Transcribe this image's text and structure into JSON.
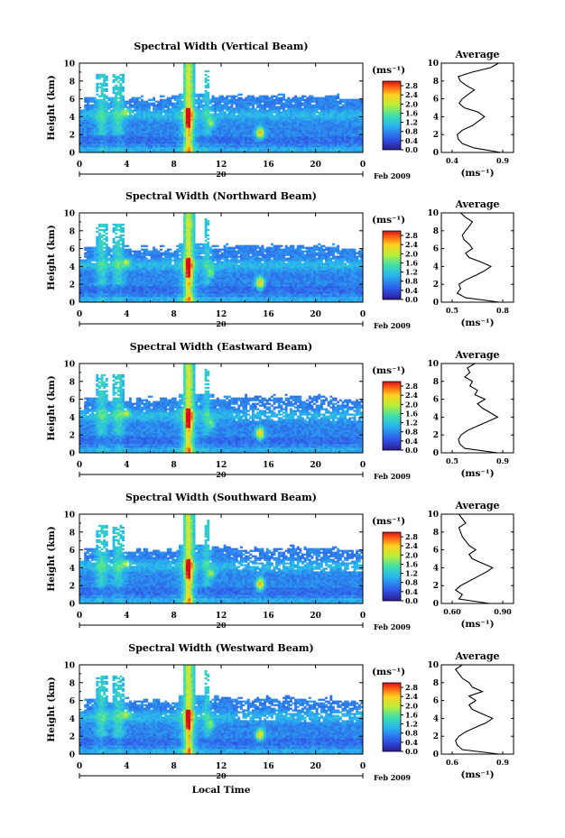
{
  "figure": {
    "x_axis_label": "Local Time",
    "day_label": "20",
    "month_label": "Feb 2009"
  },
  "chart_data": [
    {
      "type": "heatmap",
      "title": "Spectral Width (Vertical Beam)",
      "ylabel": "Height (km)",
      "xlabel": "Local Time",
      "x_ticks": [
        "0",
        "4",
        "8",
        "12",
        "16",
        "20",
        "0"
      ],
      "y_ticks": [
        "0",
        "2",
        "4",
        "6",
        "8",
        "10"
      ],
      "xlim": [
        0,
        24
      ],
      "ylim": [
        0,
        10
      ],
      "colorbar": {
        "unit": "(ms⁻¹)",
        "ticks": [
          "0.0",
          "0.4",
          "0.8",
          "1.2",
          "1.6",
          "2.0",
          "2.4",
          "2.8"
        ],
        "range": [
          0,
          3.0
        ]
      },
      "average_profile": {
        "title": "Average",
        "xlabel": "(ms⁻¹)",
        "x_ticks": [
          "0.4",
          "0.9"
        ],
        "xlim": [
          0.4,
          0.9
        ],
        "y_ticks": [
          "0",
          "2",
          "4",
          "6",
          "8",
          "10"
        ],
        "heights": [
          0,
          0.5,
          1,
          1.5,
          2,
          2.5,
          3,
          3.5,
          4,
          4.5,
          5,
          5.5,
          6,
          6.5,
          7,
          7.5,
          8,
          8.5,
          9,
          9.5,
          10
        ],
        "values": [
          0.88,
          0.62,
          0.5,
          0.46,
          0.45,
          0.5,
          0.6,
          0.66,
          0.72,
          0.66,
          0.52,
          0.47,
          0.5,
          0.56,
          0.62,
          0.54,
          0.48,
          0.46,
          0.6,
          0.78,
          0.86
        ]
      }
    },
    {
      "type": "heatmap",
      "title": "Spectral Width (Northward Beam)",
      "ylabel": "Height (km)",
      "xlabel": "Local Time",
      "x_ticks": [
        "0",
        "4",
        "8",
        "12",
        "16",
        "20",
        "0"
      ],
      "y_ticks": [
        "0",
        "2",
        "4",
        "6",
        "8",
        "10"
      ],
      "xlim": [
        0,
        24
      ],
      "ylim": [
        0,
        10
      ],
      "colorbar": {
        "unit": "(ms⁻¹)",
        "ticks": [
          "0.0",
          "0.4",
          "0.8",
          "1.2",
          "1.6",
          "2.0",
          "2.4",
          "2.8"
        ],
        "range": [
          0,
          3.0
        ]
      },
      "average_profile": {
        "title": "Average",
        "xlabel": "(ms⁻¹)",
        "x_ticks": [
          "0.5",
          "0.8"
        ],
        "xlim": [
          0.5,
          0.8
        ],
        "y_ticks": [
          "0",
          "2",
          "4",
          "6",
          "8",
          "10"
        ],
        "heights": [
          0,
          0.5,
          1,
          1.5,
          2,
          2.5,
          3,
          3.5,
          4,
          4.5,
          5,
          5.5,
          6,
          6.5,
          7,
          7.5,
          8,
          8.5,
          9,
          9.5,
          10
        ],
        "values": [
          0.78,
          0.58,
          0.53,
          0.55,
          0.54,
          0.58,
          0.64,
          0.69,
          0.73,
          0.67,
          0.6,
          0.58,
          0.62,
          0.6,
          0.57,
          0.56,
          0.58,
          0.6,
          0.62,
          0.58,
          0.55
        ]
      }
    },
    {
      "type": "heatmap",
      "title": "Spectral Width (Eastward Beam)",
      "ylabel": "Height (km)",
      "xlabel": "Local Time",
      "x_ticks": [
        "0",
        "4",
        "8",
        "12",
        "16",
        "20",
        "0"
      ],
      "y_ticks": [
        "0",
        "2",
        "4",
        "6",
        "8",
        "10"
      ],
      "xlim": [
        0,
        24
      ],
      "ylim": [
        0,
        10
      ],
      "colorbar": {
        "unit": "(ms⁻¹)",
        "ticks": [
          "0.0",
          "0.4",
          "0.8",
          "1.2",
          "1.6",
          "2.0",
          "2.4",
          "2.8"
        ],
        "range": [
          0,
          3.0
        ]
      },
      "average_profile": {
        "title": "Average",
        "xlabel": "(ms⁻¹)",
        "x_ticks": [
          "0.5",
          "0.9"
        ],
        "xlim": [
          0.5,
          0.9
        ],
        "y_ticks": [
          "0",
          "2",
          "4",
          "6",
          "8",
          "10"
        ],
        "heights": [
          0,
          0.5,
          1,
          1.5,
          2,
          2.5,
          3,
          3.5,
          4,
          4.5,
          5,
          5.5,
          6,
          6.5,
          7,
          7.5,
          8,
          8.5,
          9,
          9.5,
          10
        ],
        "values": [
          0.86,
          0.6,
          0.56,
          0.55,
          0.57,
          0.62,
          0.7,
          0.78,
          0.86,
          0.8,
          0.74,
          0.7,
          0.76,
          0.68,
          0.7,
          0.64,
          0.66,
          0.6,
          0.64,
          0.62,
          0.68
        ]
      }
    },
    {
      "type": "heatmap",
      "title": "Spectral Width (Southward Beam)",
      "ylabel": "Height (km)",
      "xlabel": "Local Time",
      "x_ticks": [
        "0",
        "4",
        "8",
        "12",
        "16",
        "20",
        "0"
      ],
      "y_ticks": [
        "0",
        "2",
        "4",
        "6",
        "8",
        "10"
      ],
      "xlim": [
        0,
        24
      ],
      "ylim": [
        0,
        10
      ],
      "colorbar": {
        "unit": "(ms⁻¹)",
        "ticks": [
          "0.0",
          "0.4",
          "0.8",
          "1.2",
          "1.6",
          "2.0",
          "2.4",
          "2.8"
        ],
        "range": [
          0,
          3.0
        ]
      },
      "average_profile": {
        "title": "Average",
        "xlabel": "(ms⁻¹)",
        "x_ticks": [
          "0.60",
          "0.90"
        ],
        "xlim": [
          0.6,
          0.9
        ],
        "y_ticks": [
          "0",
          "2",
          "4",
          "6",
          "8",
          "10"
        ],
        "heights": [
          0,
          0.5,
          1,
          1.5,
          2,
          2.5,
          3,
          3.5,
          4,
          4.5,
          5,
          5.5,
          6,
          6.5,
          7,
          7.5,
          8,
          8.5,
          9,
          9.5,
          10
        ],
        "values": [
          0.82,
          0.64,
          0.66,
          0.62,
          0.65,
          0.7,
          0.75,
          0.8,
          0.84,
          0.78,
          0.72,
          0.7,
          0.74,
          0.7,
          0.68,
          0.66,
          0.65,
          0.64,
          0.68,
          0.66,
          0.64
        ]
      }
    },
    {
      "type": "heatmap",
      "title": "Spectral Width (Westward Beam)",
      "ylabel": "Height (km)",
      "xlabel": "Local Time",
      "x_ticks": [
        "0",
        "4",
        "8",
        "12",
        "16",
        "20",
        "0"
      ],
      "y_ticks": [
        "0",
        "2",
        "4",
        "6",
        "8",
        "10"
      ],
      "xlim": [
        0,
        24
      ],
      "ylim": [
        0,
        10
      ],
      "colorbar": {
        "unit": "(ms⁻¹)",
        "ticks": [
          "0.0",
          "0.4",
          "0.8",
          "1.2",
          "1.6",
          "2.0",
          "2.4",
          "2.8"
        ],
        "range": [
          0,
          3.0
        ]
      },
      "average_profile": {
        "title": "Average",
        "xlabel": "(ms⁻¹)",
        "x_ticks": [
          "0.6",
          "0.9"
        ],
        "xlim": [
          0.6,
          0.9
        ],
        "y_ticks": [
          "0",
          "2",
          "4",
          "6",
          "8",
          "10"
        ],
        "heights": [
          0,
          0.5,
          1,
          1.5,
          2,
          2.5,
          3,
          3.5,
          4,
          4.5,
          5,
          5.5,
          6,
          6.5,
          7,
          7.5,
          8,
          8.5,
          9,
          9.5,
          10
        ],
        "values": [
          0.88,
          0.66,
          0.63,
          0.62,
          0.64,
          0.68,
          0.74,
          0.8,
          0.84,
          0.78,
          0.72,
          0.7,
          0.74,
          0.7,
          0.78,
          0.72,
          0.7,
          0.66,
          0.64,
          0.62,
          0.66
        ]
      }
    }
  ]
}
